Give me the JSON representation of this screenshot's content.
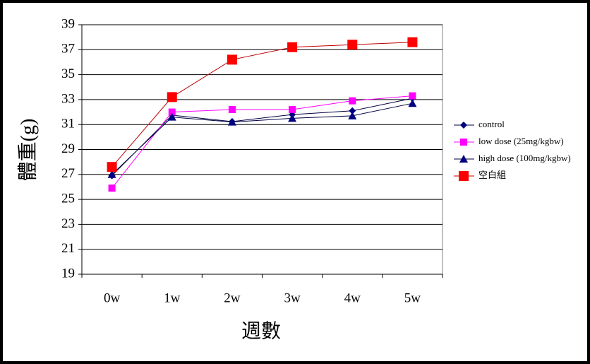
{
  "chart_data": {
    "type": "line",
    "x_label": "週數",
    "y_label": "體重(g)",
    "categories": [
      "0w",
      "1w",
      "2w",
      "3w",
      "4w",
      "5w"
    ],
    "series": [
      {
        "name": "control",
        "color": "#000080",
        "marker": "diamond",
        "values": [
          26.9,
          31.75,
          31.24,
          31.8,
          32.1,
          33.1
        ]
      },
      {
        "name": "low dose (25mg/kgbw)",
        "color": "#ff00ff",
        "marker": "square",
        "values": [
          25.9,
          32.0,
          32.2,
          32.2,
          32.9,
          33.3
        ]
      },
      {
        "name": "high dose (100mg/kgbw)",
        "color": "#000080",
        "marker": "triangle",
        "values": [
          27.0,
          31.6,
          31.2,
          31.5,
          31.7,
          32.7
        ]
      },
      {
        "name": "空白組",
        "color": "#ff0000",
        "marker": "square-large",
        "values": [
          27.6,
          33.2,
          36.2,
          37.2,
          37.4,
          37.6
        ]
      }
    ],
    "ylim": [
      19,
      39
    ],
    "yticks": [
      19,
      21,
      23,
      25,
      27,
      29,
      31,
      33,
      35,
      37,
      39
    ],
    "grid": true,
    "legend": "right"
  }
}
